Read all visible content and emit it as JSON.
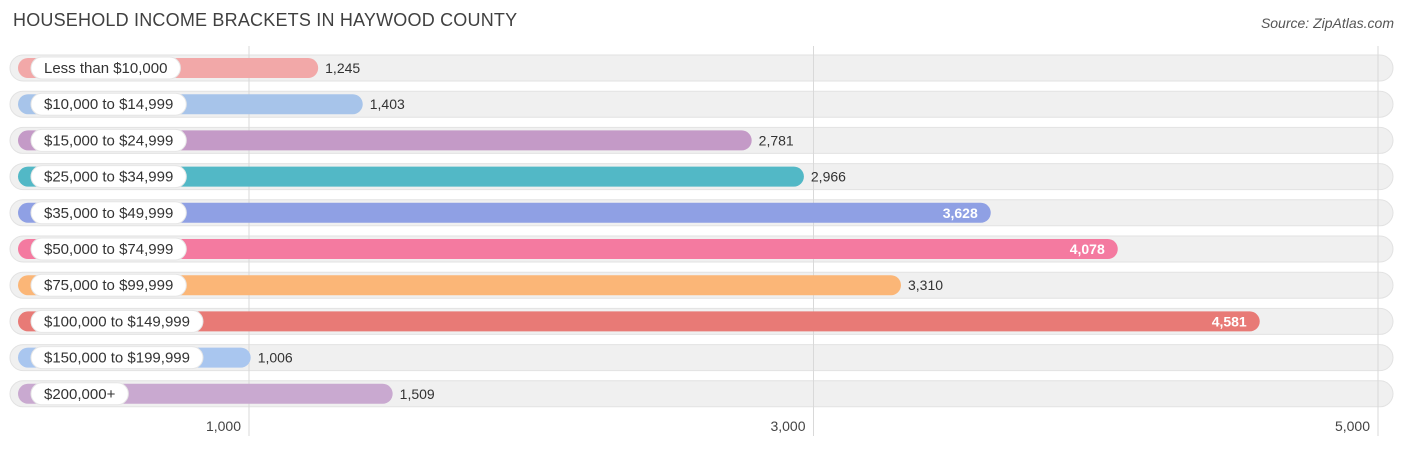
{
  "header": {
    "title": "HOUSEHOLD INCOME BRACKETS IN HAYWOOD COUNTY",
    "source": "Source: ZipAtlas.com"
  },
  "chart_data": {
    "type": "bar",
    "orientation": "horizontal",
    "title": "HOUSEHOLD INCOME BRACKETS IN HAYWOOD COUNTY",
    "xlabel": "",
    "ylabel": "",
    "categories": [
      "Less than $10,000",
      "$10,000 to $14,999",
      "$15,000 to $24,999",
      "$25,000 to $34,999",
      "$35,000 to $49,999",
      "$50,000 to $74,999",
      "$75,000 to $99,999",
      "$100,000 to $149,999",
      "$150,000 to $199,999",
      "$200,000+"
    ],
    "values": [
      1245,
      1403,
      2781,
      2966,
      3628,
      4078,
      3310,
      4581,
      1006,
      1509
    ],
    "value_labels": [
      "1,245",
      "1,403",
      "2,781",
      "2,966",
      "3,628",
      "4,078",
      "3,310",
      "4,581",
      "1,006",
      "1,509"
    ],
    "colors": [
      "#f2a8a8",
      "#a7c4ea",
      "#c49ac7",
      "#52b8c6",
      "#8fa0e4",
      "#f47aa0",
      "#fbb677",
      "#e87a76",
      "#a9c6ef",
      "#c9a9d0"
    ],
    "xlim": [
      0,
      5000
    ],
    "ticks": [
      1000,
      3000,
      5000
    ],
    "tick_labels": [
      "1,000",
      "3,000",
      "5,000"
    ],
    "grid": true,
    "legend": "none"
  }
}
